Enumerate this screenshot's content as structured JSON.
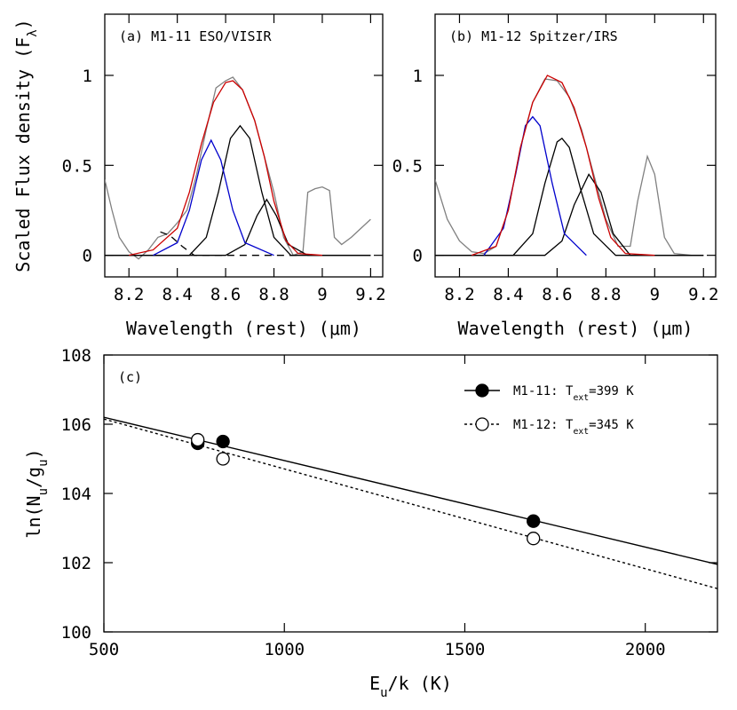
{
  "chart_data": [
    {
      "type": "line",
      "annotation": "(a) M1-11 ESO/VISIR",
      "xlabel": "Wavelength (rest) (μm)",
      "ylabel": [
        "Scaled Flux density (F",
        "λ",
        ")"
      ],
      "xlim": [
        8.1,
        9.25
      ],
      "ylim": [
        -0.12,
        1.34
      ],
      "xticks": [
        8.2,
        8.4,
        8.6,
        8.8,
        9,
        9.2
      ],
      "yticks": [
        0,
        0.5,
        1
      ],
      "series": [
        {
          "color": "#808080",
          "x": [
            8.1,
            8.13,
            8.16,
            8.2,
            8.24,
            8.28,
            8.32,
            8.36,
            8.4,
            8.44,
            8.48,
            8.52,
            8.56,
            8.6,
            8.63,
            8.67,
            8.72,
            8.76,
            8.8,
            8.84,
            8.88,
            8.92,
            8.94,
            8.97,
            9.0,
            9.03,
            9.05,
            9.08,
            9.12,
            9.16,
            9.2
          ],
          "values": [
            0.42,
            0.25,
            0.1,
            0.02,
            -0.02,
            0.03,
            0.1,
            0.12,
            0.18,
            0.25,
            0.45,
            0.7,
            0.93,
            0.97,
            0.99,
            0.92,
            0.75,
            0.55,
            0.35,
            0.1,
            0.0,
            0.02,
            0.35,
            0.37,
            0.38,
            0.36,
            0.1,
            0.06,
            0.1,
            0.15,
            0.2
          ]
        },
        {
          "color": "#000000",
          "x": [
            8.1,
            8.45,
            8.52,
            8.57,
            8.62,
            8.66,
            8.7,
            8.75,
            8.8,
            8.87,
            9.2
          ],
          "values": [
            0,
            0,
            0.1,
            0.35,
            0.65,
            0.72,
            0.65,
            0.35,
            0.1,
            0,
            0
          ]
        },
        {
          "color": "#000000",
          "x": [
            8.1,
            8.6,
            8.68,
            8.73,
            8.77,
            8.81,
            8.86,
            8.94,
            9.2
          ],
          "values": [
            0,
            0,
            0.06,
            0.22,
            0.31,
            0.22,
            0.06,
            0,
            0
          ]
        },
        {
          "color": "#000000",
          "dash": "8,6",
          "x": [
            8.33,
            8.37,
            8.42,
            8.47,
            8.9
          ],
          "values": [
            0.13,
            0.11,
            0.05,
            0,
            0
          ]
        },
        {
          "color": "#0000cc",
          "x": [
            8.3,
            8.4,
            8.45,
            8.5,
            8.54,
            8.58,
            8.63,
            8.68,
            8.8
          ],
          "values": [
            0,
            0.07,
            0.25,
            0.53,
            0.64,
            0.53,
            0.25,
            0.07,
            0
          ]
        },
        {
          "color": "#cc0000",
          "x": [
            8.2,
            8.3,
            8.4,
            8.45,
            8.5,
            8.55,
            8.6,
            8.63,
            8.67,
            8.72,
            8.76,
            8.8,
            8.85,
            8.9,
            9.0
          ],
          "values": [
            0,
            0.03,
            0.15,
            0.35,
            0.62,
            0.85,
            0.96,
            0.97,
            0.92,
            0.75,
            0.55,
            0.3,
            0.08,
            0.01,
            0
          ]
        }
      ]
    },
    {
      "type": "line",
      "annotation": "(b) M1-12 Spitzer/IRS",
      "xlabel": "Wavelength (rest) (μm)",
      "xlim": [
        8.1,
        9.25
      ],
      "ylim": [
        -0.12,
        1.34
      ],
      "xticks": [
        8.2,
        8.4,
        8.6,
        8.8,
        9,
        9.2
      ],
      "yticks": [
        0,
        0.5,
        1
      ],
      "series": [
        {
          "color": "#808080",
          "x": [
            8.1,
            8.15,
            8.2,
            8.25,
            8.3,
            8.35,
            8.4,
            8.45,
            8.5,
            8.55,
            8.6,
            8.65,
            8.7,
            8.75,
            8.8,
            8.85,
            8.9,
            8.93,
            8.97,
            9.0,
            9.04,
            9.08,
            9.15
          ],
          "values": [
            0.42,
            0.2,
            0.08,
            0.02,
            0.01,
            0.05,
            0.25,
            0.6,
            0.85,
            0.98,
            0.97,
            0.88,
            0.7,
            0.45,
            0.2,
            0.05,
            0.05,
            0.3,
            0.55,
            0.45,
            0.1,
            0.01,
            0
          ]
        },
        {
          "color": "#000000",
          "x": [
            8.1,
            8.42,
            8.5,
            8.55,
            8.6,
            8.62,
            8.65,
            8.7,
            8.75,
            8.84,
            9.2
          ],
          "values": [
            0,
            0,
            0.12,
            0.4,
            0.63,
            0.65,
            0.6,
            0.35,
            0.12,
            0,
            0
          ]
        },
        {
          "color": "#000000",
          "x": [
            8.1,
            8.55,
            8.62,
            8.67,
            8.73,
            8.78,
            8.83,
            8.9,
            9.2
          ],
          "values": [
            0,
            0,
            0.08,
            0.28,
            0.45,
            0.35,
            0.12,
            0,
            0
          ]
        },
        {
          "color": "#0000cc",
          "x": [
            8.3,
            8.38,
            8.43,
            8.47,
            8.5,
            8.53,
            8.58,
            8.63,
            8.72
          ],
          "values": [
            0,
            0.15,
            0.45,
            0.72,
            0.77,
            0.72,
            0.4,
            0.12,
            0
          ]
        },
        {
          "color": "#cc0000",
          "x": [
            8.25,
            8.35,
            8.4,
            8.45,
            8.5,
            8.56,
            8.62,
            8.67,
            8.72,
            8.77,
            8.82,
            8.88,
            9.0
          ],
          "values": [
            0,
            0.05,
            0.25,
            0.6,
            0.85,
            1.0,
            0.96,
            0.82,
            0.6,
            0.32,
            0.1,
            0.01,
            0
          ]
        }
      ]
    },
    {
      "type": "scatter",
      "annotation": "(c)",
      "xlabel": [
        "E",
        "u",
        "/k (K)"
      ],
      "ylabel": [
        "ln(N",
        "u",
        "/g",
        "u",
        ")"
      ],
      "xlim": [
        500,
        2200
      ],
      "ylim": [
        100,
        108
      ],
      "xticks": [
        500,
        1000,
        1500,
        2000
      ],
      "yticks": [
        100,
        102,
        104,
        106,
        108
      ],
      "legend": "upper right",
      "series": [
        {
          "name": [
            "M1-11: T",
            "ext",
            "=399 K"
          ],
          "marker": "filled",
          "color": "#000000",
          "x": [
            760,
            830,
            1690
          ],
          "values": [
            105.45,
            105.5,
            103.2
          ],
          "fit": {
            "x": [
              500,
              2200
            ],
            "values": [
              106.2,
              101.95
            ]
          }
        },
        {
          "name": [
            "M1-12: T",
            "ext",
            "=345 K"
          ],
          "marker": "open",
          "color": "#000000",
          "dash": "3,3",
          "x": [
            760,
            830,
            1690
          ],
          "values": [
            105.55,
            105.0,
            102.7
          ],
          "fit": {
            "x": [
              500,
              2200
            ],
            "values": [
              106.15,
              101.25
            ]
          }
        }
      ]
    }
  ]
}
